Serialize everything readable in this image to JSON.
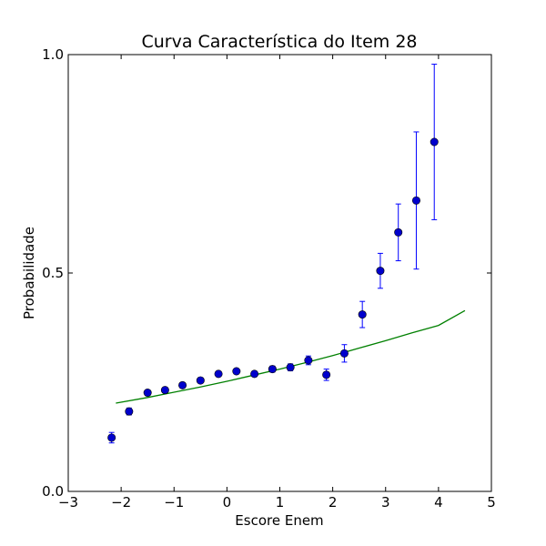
{
  "chart_data": {
    "type": "scatter",
    "title": "Curva Característica do Item 28",
    "xlabel": "Escore Enem",
    "ylabel": "Probabilidade",
    "xlim": [
      -3,
      5
    ],
    "ylim": [
      0.0,
      1.0
    ],
    "xticks": [
      -3,
      -2,
      -1,
      0,
      1,
      2,
      3,
      4,
      5
    ],
    "xtick_labels": [
      "−3",
      "−2",
      "−1",
      "0",
      "1",
      "2",
      "3",
      "4",
      "5"
    ],
    "yticks": [
      0.0,
      0.5,
      1.0
    ],
    "ytick_labels": [
      "0.0",
      "0.5",
      "1.0"
    ],
    "grid": false,
    "series": [
      {
        "kind": "points-with-errorbars",
        "color": "#0000cc",
        "errorbar_color": "#0000ff",
        "x": [
          -2.18,
          -1.85,
          -1.5,
          -1.17,
          -0.84,
          -0.5,
          -0.16,
          0.18,
          0.52,
          0.86,
          1.2,
          1.54,
          1.88,
          2.22,
          2.56,
          2.9,
          3.24,
          3.58,
          3.92
        ],
        "y": [
          0.123,
          0.183,
          0.226,
          0.232,
          0.243,
          0.254,
          0.269,
          0.275,
          0.269,
          0.28,
          0.284,
          0.3,
          0.267,
          0.316,
          0.405,
          0.505,
          0.593,
          0.666,
          0.8
        ],
        "err": [
          0.012,
          0.008,
          0.006,
          0.005,
          0.006,
          0.006,
          0.006,
          0.006,
          0.006,
          0.007,
          0.008,
          0.01,
          0.013,
          0.02,
          0.03,
          0.04,
          0.065,
          0.157,
          0.178
        ]
      },
      {
        "kind": "line",
        "color": "#008000",
        "x": [
          -2.1,
          -1.5,
          -1.0,
          -0.5,
          0.0,
          0.5,
          1.0,
          1.5,
          2.0,
          2.5,
          3.0,
          3.5,
          4.0,
          4.5
        ],
        "y": [
          0.202,
          0.215,
          0.227,
          0.239,
          0.252,
          0.266,
          0.28,
          0.295,
          0.311,
          0.328,
          0.345,
          0.363,
          0.38,
          0.414
        ]
      }
    ]
  }
}
